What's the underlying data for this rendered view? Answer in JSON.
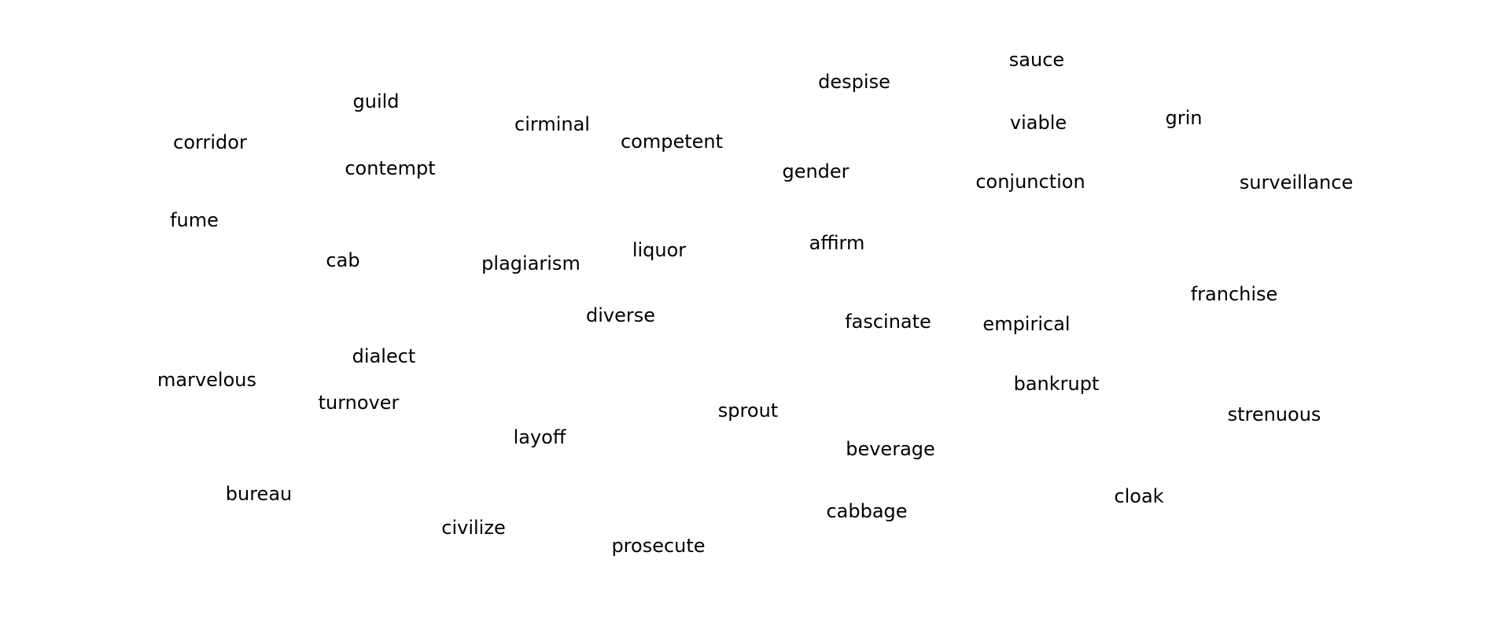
{
  "words": [
    "sauce",
    "despise",
    "guild",
    "cirminal",
    "competent",
    "viable",
    "grin",
    "corridor",
    "contempt",
    "gender",
    "conjunction",
    "surveillance",
    "fume",
    "cab",
    "plagiarism",
    "liquor",
    "affirm",
    "franchise",
    "diverse",
    "fascinate",
    "empirical",
    "dialect",
    "marvelous",
    "turnover",
    "bankrupt",
    "sprout",
    "strenuous",
    "layoff",
    "beverage",
    "bureau",
    "cloak",
    "cabbage",
    "civilize",
    "prosecute"
  ]
}
